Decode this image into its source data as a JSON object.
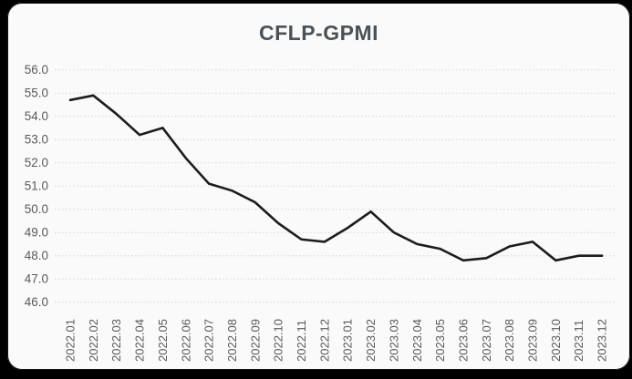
{
  "window": {
    "background_color": "#000000",
    "card_color": "#fafafa"
  },
  "chart_data": {
    "type": "line",
    "title": "CFLP-GPMI",
    "xlabel": "",
    "ylabel": "",
    "categories": [
      "2022.01",
      "2022.02",
      "2022.03",
      "2022.04",
      "2022.05",
      "2022.06",
      "2022.07",
      "2022.08",
      "2022.09",
      "2022.10",
      "2022.11",
      "2022.12",
      "2023.01",
      "2023.02",
      "2023.03",
      "2023.04",
      "2023.05",
      "2023.06",
      "2023.07",
      "2023.08",
      "2023.09",
      "2023.10",
      "2023.11",
      "2023.12"
    ],
    "series": [
      {
        "name": "CFLP-GPMI",
        "values": [
          54.7,
          54.9,
          54.1,
          53.2,
          53.5,
          52.2,
          51.1,
          50.8,
          50.3,
          49.4,
          48.7,
          48.6,
          49.2,
          49.9,
          49.0,
          48.5,
          48.3,
          47.8,
          47.9,
          48.4,
          48.6,
          47.8,
          48.0,
          48.0
        ]
      }
    ],
    "ylim": [
      46.0,
      56.0
    ],
    "ytick_step": 1.0,
    "ytick_labels": [
      "56.0",
      "55.0",
      "54.0",
      "53.0",
      "52.0",
      "51.0",
      "50.0",
      "49.0",
      "48.0",
      "47.0",
      "46.0"
    ],
    "x_label_rotation_deg": -90,
    "grid": "horizontal",
    "gridline_style": "dotted",
    "legend": "none",
    "colors": {
      "line": "#1c1c1c",
      "title": "#4a5257",
      "tick_labels": "#5a5a5a",
      "gridlines": "#ccdad7"
    }
  }
}
